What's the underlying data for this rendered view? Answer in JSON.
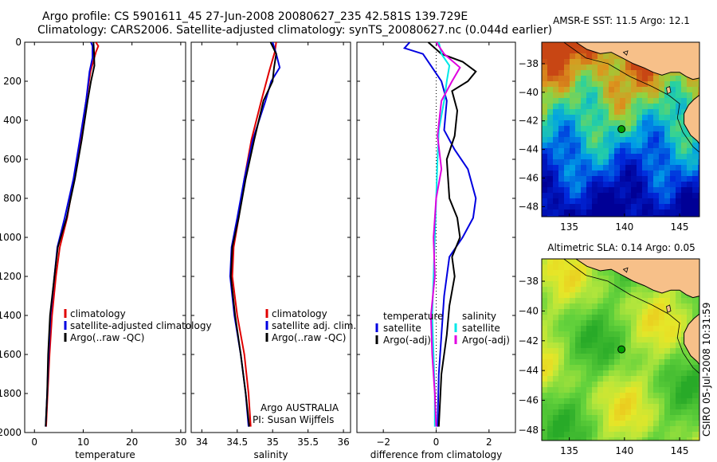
{
  "header": {
    "line1": "Argo profile: CS 5901611_45 27-Jun-2008 20080627_235 42.581S 139.729E",
    "line2": "Climatology: CARS2006. Satellite-adjusted climatology: synTS_20080627.nc (0.044d earlier)"
  },
  "colors": {
    "red": "#e00000",
    "blue": "#0000e0",
    "black": "#000000",
    "cyan": "#00e8e8",
    "magenta": "#e000e0",
    "land": "#f7c089"
  },
  "chart_data": [
    {
      "id": "temperature",
      "type": "line",
      "xlabel": "temperature",
      "xlim": [
        -2,
        31
      ],
      "ylim": [
        2000,
        0
      ],
      "xticks": [
        0,
        10,
        20,
        30
      ],
      "yticks": [
        0,
        200,
        400,
        600,
        800,
        1000,
        1200,
        1400,
        1600,
        1800,
        2000
      ],
      "legend": [
        "climatology",
        "satellite-adjusted climatology",
        "Argo(..raw -QC)"
      ],
      "series": [
        {
          "name": "climatology",
          "color": "red",
          "points": [
            [
              12.6,
              0
            ],
            [
              13.1,
              20
            ],
            [
              12.6,
              50
            ],
            [
              11.5,
              150
            ],
            [
              10.6,
              300
            ],
            [
              9.4,
              500
            ],
            [
              8.1,
              700
            ],
            [
              6.7,
              900
            ],
            [
              5.2,
              1050
            ],
            [
              4.4,
              1200
            ],
            [
              3.6,
              1400
            ],
            [
              3.1,
              1600
            ],
            [
              2.7,
              1800
            ],
            [
              2.4,
              1970
            ]
          ]
        },
        {
          "name": "satellite-adjusted climatology",
          "color": "blue",
          "points": [
            [
              11.6,
              0
            ],
            [
              11.9,
              20
            ],
            [
              11.9,
              80
            ],
            [
              11.3,
              150
            ],
            [
              10.6,
              300
            ],
            [
              9.3,
              500
            ],
            [
              8.0,
              700
            ],
            [
              6.2,
              900
            ],
            [
              4.7,
              1050
            ],
            [
              4.1,
              1200
            ],
            [
              3.3,
              1400
            ],
            [
              2.9,
              1600
            ],
            [
              2.6,
              1800
            ],
            [
              2.3,
              1970
            ]
          ]
        },
        {
          "name": "Argo(..raw -QC)",
          "color": "black",
          "points": [
            [
              12.1,
              0
            ],
            [
              12.2,
              40
            ],
            [
              12.3,
              120
            ],
            [
              11.6,
              200
            ],
            [
              10.9,
              300
            ],
            [
              9.7,
              500
            ],
            [
              8.3,
              700
            ],
            [
              6.6,
              900
            ],
            [
              4.8,
              1050
            ],
            [
              4.1,
              1200
            ],
            [
              3.2,
              1400
            ],
            [
              2.8,
              1600
            ],
            [
              2.6,
              1800
            ],
            [
              2.3,
              1970
            ]
          ]
        }
      ]
    },
    {
      "id": "salinity",
      "type": "line",
      "xlabel": "salinity",
      "xlim": [
        33.85,
        36.1
      ],
      "ylim": [
        2000,
        0
      ],
      "xticks": [
        34,
        34.5,
        35,
        35.5,
        36
      ],
      "yticks": [
        0,
        200,
        400,
        600,
        800,
        1000,
        1200,
        1400,
        1600,
        1800,
        2000
      ],
      "legend": [
        "climatology",
        "satellite adj. clim.",
        "Argo(..raw -QC)"
      ],
      "annotation": [
        "Argo AUSTRALIA",
        "PI: Susan Wijffels"
      ],
      "series": [
        {
          "name": "climatology",
          "color": "red",
          "points": [
            [
              35.05,
              0
            ],
            [
              35.03,
              50
            ],
            [
              34.95,
              150
            ],
            [
              34.84,
              300
            ],
            [
              34.7,
              500
            ],
            [
              34.6,
              700
            ],
            [
              34.52,
              900
            ],
            [
              34.45,
              1050
            ],
            [
              34.43,
              1200
            ],
            [
              34.5,
              1400
            ],
            [
              34.6,
              1600
            ],
            [
              34.66,
              1800
            ],
            [
              34.69,
              1970
            ]
          ]
        },
        {
          "name": "satellite adj. clim.",
          "color": "blue",
          "points": [
            [
              35.0,
              0
            ],
            [
              35.05,
              60
            ],
            [
              35.1,
              130
            ],
            [
              34.98,
              200
            ],
            [
              34.9,
              300
            ],
            [
              34.72,
              500
            ],
            [
              34.6,
              700
            ],
            [
              34.5,
              900
            ],
            [
              34.42,
              1050
            ],
            [
              34.4,
              1200
            ],
            [
              34.46,
              1400
            ],
            [
              34.55,
              1600
            ],
            [
              34.62,
              1800
            ],
            [
              34.66,
              1970
            ]
          ]
        },
        {
          "name": "Argo(..raw -QC)",
          "color": "black",
          "points": [
            [
              34.97,
              0
            ],
            [
              35.05,
              60
            ],
            [
              35.02,
              130
            ],
            [
              35.0,
              200
            ],
            [
              34.87,
              300
            ],
            [
              34.74,
              500
            ],
            [
              34.62,
              700
            ],
            [
              34.52,
              900
            ],
            [
              34.43,
              1050
            ],
            [
              34.41,
              1200
            ],
            [
              34.47,
              1400
            ],
            [
              34.55,
              1600
            ],
            [
              34.62,
              1800
            ],
            [
              34.67,
              1970
            ]
          ]
        }
      ]
    },
    {
      "id": "difference",
      "type": "line",
      "xlabel": "difference from climatology",
      "xlim": [
        -3,
        3
      ],
      "ylim": [
        2000,
        0
      ],
      "xticks": [
        -2,
        0,
        2
      ],
      "yticks": [
        0,
        200,
        400,
        600,
        800,
        1000,
        1200,
        1400,
        1600,
        1800,
        2000
      ],
      "legend_groups": [
        {
          "title": "temperature",
          "items": [
            {
              "label": "satellite",
              "color": "blue"
            },
            {
              "label": "Argo(-adj)",
              "color": "black"
            }
          ]
        },
        {
          "title": "salinity",
          "items": [
            {
              "label": "satellite",
              "color": "cyan"
            },
            {
              "label": "Argo(-adj)",
              "color": "magenta"
            }
          ]
        }
      ],
      "series": [
        {
          "name": "temperature satellite",
          "color": "blue",
          "points": [
            [
              -1.0,
              0
            ],
            [
              -1.2,
              30
            ],
            [
              -0.5,
              60
            ],
            [
              -0.2,
              120
            ],
            [
              0.2,
              200
            ],
            [
              0.4,
              300
            ],
            [
              0.3,
              450
            ],
            [
              0.7,
              550
            ],
            [
              1.2,
              650
            ],
            [
              1.5,
              800
            ],
            [
              1.4,
              900
            ],
            [
              1.0,
              1000
            ],
            [
              0.5,
              1100
            ],
            [
              0.3,
              1300
            ],
            [
              0.2,
              1500
            ],
            [
              0.1,
              1700
            ],
            [
              0.05,
              1970
            ]
          ]
        },
        {
          "name": "temperature Argo(-adj)",
          "color": "black",
          "points": [
            [
              -0.3,
              0
            ],
            [
              0.2,
              60
            ],
            [
              1.0,
              100
            ],
            [
              1.5,
              150
            ],
            [
              1.2,
              200
            ],
            [
              0.6,
              250
            ],
            [
              0.8,
              350
            ],
            [
              0.7,
              480
            ],
            [
              0.4,
              600
            ],
            [
              0.5,
              800
            ],
            [
              0.8,
              900
            ],
            [
              0.9,
              1000
            ],
            [
              0.6,
              1100
            ],
            [
              0.7,
              1200
            ],
            [
              0.5,
              1350
            ],
            [
              0.4,
              1500
            ],
            [
              0.2,
              1700
            ],
            [
              0.1,
              1970
            ]
          ]
        },
        {
          "name": "salinity satellite",
          "color": "cyan",
          "points": [
            [
              0.1,
              0
            ],
            [
              0.2,
              60
            ],
            [
              0.5,
              120
            ],
            [
              0.4,
              200
            ],
            [
              0.3,
              300
            ],
            [
              0.1,
              450
            ],
            [
              0.05,
              600
            ],
            [
              0.0,
              800
            ],
            [
              -0.05,
              1000
            ],
            [
              -0.1,
              1200
            ],
            [
              -0.15,
              1400
            ],
            [
              -0.1,
              1600
            ],
            [
              -0.05,
              1800
            ],
            [
              -0.05,
              1970
            ]
          ]
        },
        {
          "name": "salinity Argo(-adj)",
          "color": "magenta",
          "points": [
            [
              0.0,
              0
            ],
            [
              0.3,
              60
            ],
            [
              0.9,
              130
            ],
            [
              0.6,
              200
            ],
            [
              0.2,
              300
            ],
            [
              0.05,
              480
            ],
            [
              0.2,
              650
            ],
            [
              0.0,
              800
            ],
            [
              -0.1,
              1000
            ],
            [
              -0.05,
              1200
            ],
            [
              -0.2,
              1400
            ],
            [
              -0.15,
              1600
            ],
            [
              -0.05,
              1800
            ],
            [
              0.0,
              1970
            ]
          ]
        }
      ]
    }
  ],
  "maps": [
    {
      "id": "sst",
      "title": "AMSR-E SST: 11.5 Argo: 12.1",
      "lon_range": [
        132.5,
        146.8
      ],
      "lat_range": [
        -48.7,
        -36.5
      ],
      "xticks": [
        135,
        140,
        145
      ],
      "yticks": [
        -38,
        -40,
        -42,
        -44,
        -46,
        -48
      ],
      "argo_position": {
        "lon": 139.73,
        "lat": -42.58
      },
      "marker_color": "#00a000",
      "palette": "sst"
    },
    {
      "id": "sla",
      "title": "Altimetric SLA: 0.14 Argo: 0.05",
      "lon_range": [
        132.5,
        146.8
      ],
      "lat_range": [
        -48.7,
        -36.5
      ],
      "xticks": [
        135,
        140,
        145
      ],
      "yticks": [
        -38,
        -40,
        -42,
        -44,
        -46,
        -48
      ],
      "argo_position": {
        "lon": 139.73,
        "lat": -42.58
      },
      "marker_color": "#00a000",
      "palette": "sla"
    }
  ],
  "credit": "CSIRO 05-Jul-2008 10:31:59"
}
